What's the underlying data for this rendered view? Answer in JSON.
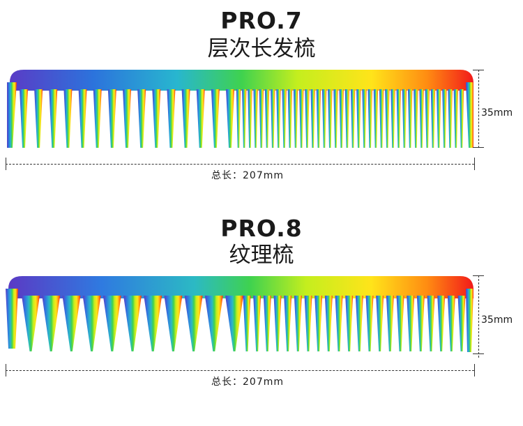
{
  "products": [
    {
      "model": "PRO.7",
      "name": "层次长发梳",
      "length_label": "总长：207mm",
      "height_label": "35mm"
    },
    {
      "model": "PRO.8",
      "name": "纹理梳",
      "length_label": "总长：207mm",
      "height_label": "35mm"
    }
  ],
  "colors": {
    "gradient": [
      "#4a3fc9",
      "#2a78e0",
      "#2bb7c8",
      "#3bd15c",
      "#b8ec1c",
      "#ffe81a",
      "#ff8a10",
      "#f01f1f"
    ],
    "dimension_line": "#333333"
  }
}
